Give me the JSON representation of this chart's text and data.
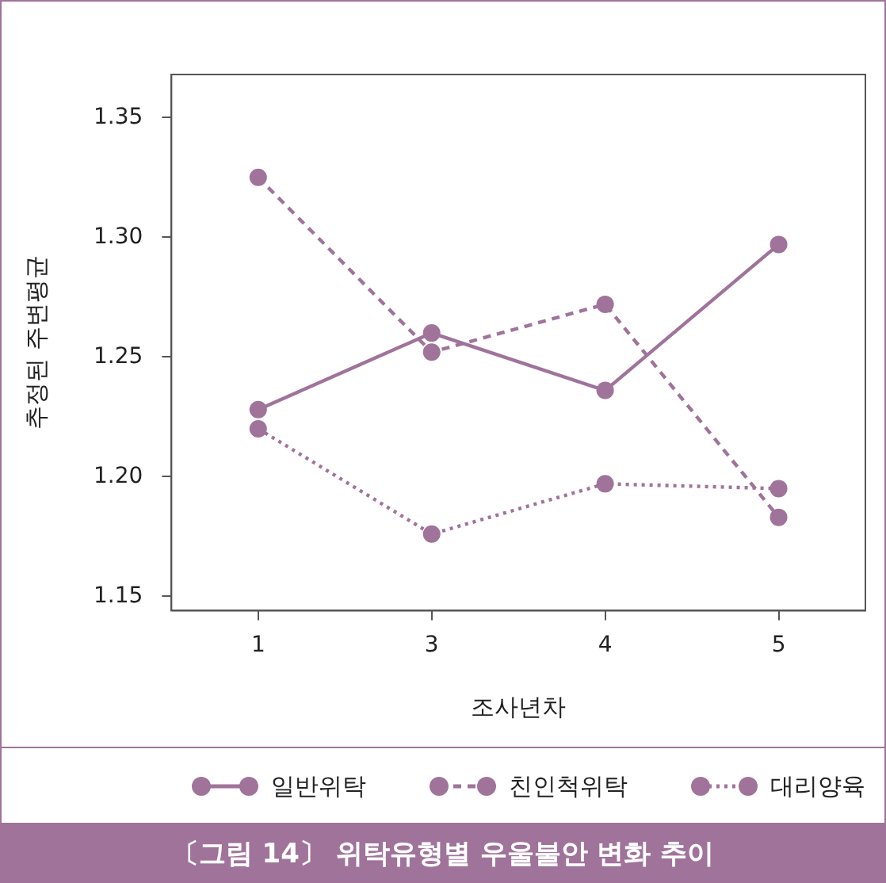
{
  "chart_data": {
    "type": "line",
    "title": "〔그림 14〕 위탁유형별 우울불안 변화 추이",
    "xlabel": "조사년차",
    "ylabel": "추정된 주변평균",
    "categories": [
      "1",
      "3",
      "4",
      "5"
    ],
    "series": [
      {
        "name": "일반위탁",
        "color": "#a0739b",
        "line_style": "solid",
        "values": [
          1.228,
          1.26,
          1.236,
          1.297
        ]
      },
      {
        "name": "친인척위탁",
        "color": "#a0739b",
        "line_style": "dashed",
        "values": [
          1.325,
          1.252,
          1.272,
          1.183
        ]
      },
      {
        "name": "대리양육",
        "color": "#a0739b",
        "line_style": "dotted",
        "values": [
          1.22,
          1.176,
          1.197,
          1.195
        ]
      }
    ],
    "ylim": [
      1.144,
      1.368
    ],
    "yticks": [
      {
        "value": 1.15,
        "label": "1.15"
      },
      {
        "value": 1.2,
        "label": "1.20"
      },
      {
        "value": 1.25,
        "label": "1.25"
      },
      {
        "value": 1.3,
        "label": "1.30"
      },
      {
        "value": 1.35,
        "label": "1.35"
      }
    ],
    "grid": false,
    "legend": "bottom",
    "marker": "circle"
  }
}
